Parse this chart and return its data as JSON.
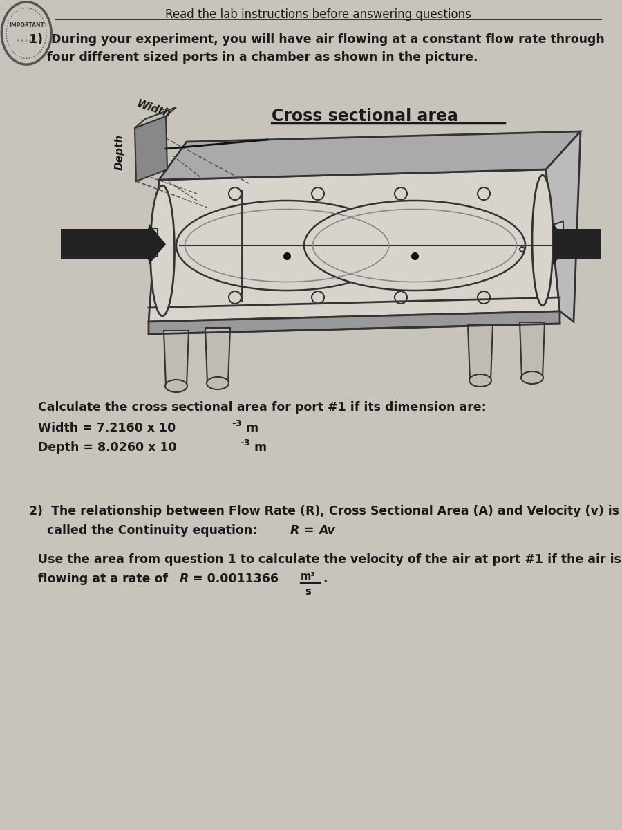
{
  "bg_color": "#c8c4bc",
  "text_color": "#1a1a1a",
  "font_size_body": 12.5,
  "cross_section_label": "Cross sectional area",
  "q1_calc": "Calculate the cross sectional area for port #1 if its dimension are:",
  "width_text": "Width = 7.2160 x 10",
  "width_exp": "-3",
  "width_m": " m",
  "depth_text": "Depth = 8.0260 x 10",
  "depth_exp": "-3",
  "depth_m": " m",
  "q2_line1": "2)  The relationship between Flow Rate (R), Cross Sectional Area (A) and Velocity (v) is",
  "q2_line2": "called the Continuity equation: ",
  "q2_eq": "R = Av",
  "q2_use1": "Use the area from question 1 to calculate the velocity of the air at port #1 if the air is",
  "q2_use2": "flowing at a rate of   ",
  "q2_R": "R",
  "q2_val": " = 0.0011366",
  "rate_num": "m³",
  "rate_den": "s",
  "rate_dot": "."
}
